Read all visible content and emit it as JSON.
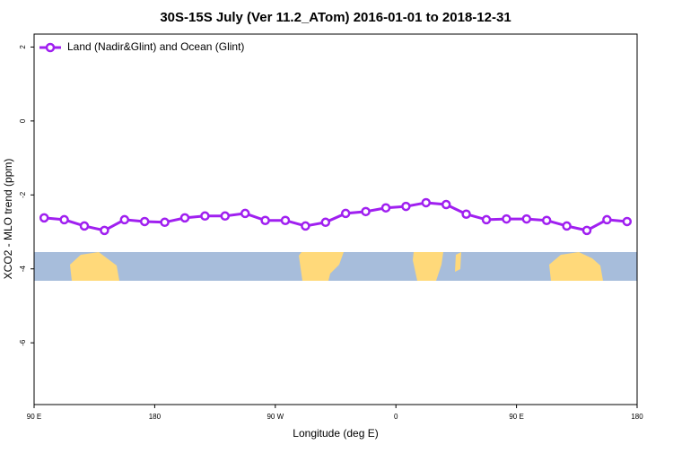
{
  "chart_data": {
    "type": "line",
    "title": "30S-15S July (Ver 11.2_ATom)   2016-01-01 to 2018-12-31",
    "xlabel": "Longitude (deg E)",
    "ylabel": "XCO2 - MLO trend (ppm)",
    "x": [
      97.5,
      112.5,
      127.5,
      142.5,
      157.5,
      172.5,
      187.5,
      202.5,
      217.5,
      232.5,
      247.5,
      262.5,
      277.5,
      292.5,
      307.5,
      322.5,
      337.5,
      352.5,
      367.5,
      382.5,
      397.5,
      412.5,
      427.5,
      442.5,
      457.5,
      472.5,
      487.5,
      502.5,
      517.5,
      532.5
    ],
    "series": [
      {
        "name": "Land (Nadir&Glint) and Ocean (Glint)",
        "color": "#a020f0",
        "values": [
          -2.62,
          -2.67,
          -2.84,
          -2.96,
          -2.67,
          -2.72,
          -2.74,
          -2.62,
          -2.57,
          -2.57,
          -2.5,
          -2.69,
          -2.69,
          -2.84,
          -2.74,
          -2.5,
          -2.45,
          -2.35,
          -2.31,
          -2.21,
          -2.26,
          -2.52,
          -2.67,
          -2.65,
          -2.65,
          -2.69,
          -2.84,
          -2.96,
          -2.67,
          -2.72
        ]
      }
    ],
    "xlim": [
      90,
      540
    ],
    "xticks": [
      {
        "value": 90,
        "label": "90 E"
      },
      180,
      {
        "value": 270,
        "label": "90 W"
      },
      {
        "value": 360,
        "label": "0"
      },
      {
        "value": 450,
        "label": "90 E"
      },
      {
        "value": 540,
        "label": "180"
      }
    ],
    "ylim": [
      -7.67,
      2.35
    ],
    "yticks": [
      2,
      0,
      -2,
      -4,
      -6
    ],
    "legend": "top-left"
  }
}
